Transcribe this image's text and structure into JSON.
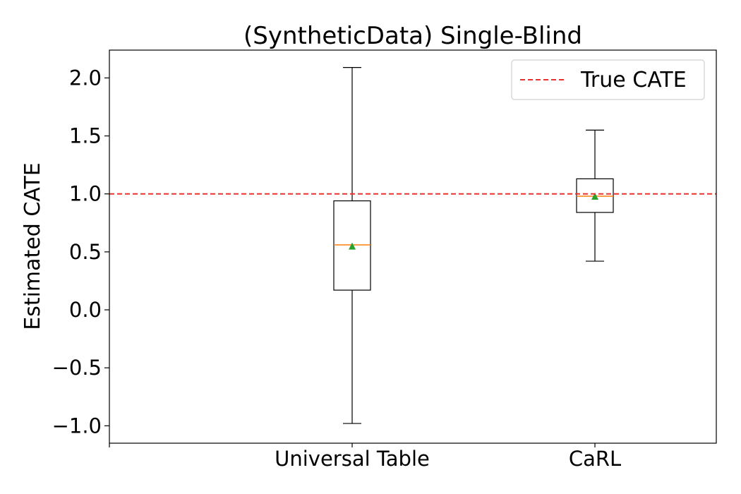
{
  "chart_data": {
    "type": "box",
    "title": "(SyntheticData) Single-Blind",
    "xlabel": "",
    "ylabel": "Estimated CATE",
    "ylim": [
      -1.15,
      2.24
    ],
    "yticks": [
      2.0,
      1.5,
      1.0,
      0.5,
      0.0,
      -0.5,
      -1.0
    ],
    "ytick_labels": [
      "2.0",
      "1.5",
      "1.0",
      "0.5",
      "0.0",
      "−0.5",
      "−1.0"
    ],
    "grid": false,
    "legend_position": "top-right",
    "reference_line": {
      "label": "True CATE",
      "value": 1.0,
      "style": "dashed",
      "color": "#e8322d"
    },
    "categories": [
      "Universal Table",
      "CaRL"
    ],
    "boxes": [
      {
        "label": "Universal Table",
        "whisker_low": -0.98,
        "q1": 0.17,
        "median": 0.56,
        "q3": 0.94,
        "whisker_high": 2.09,
        "mean": 0.55
      },
      {
        "label": "CaRL",
        "whisker_low": 0.42,
        "q1": 0.84,
        "median": 0.98,
        "q3": 1.13,
        "whisker_high": 1.55,
        "mean": 0.98
      }
    ],
    "colors": {
      "box": "#000000",
      "median": "#ff7f0e",
      "mean": "#2ca02c",
      "reference": "#e8322d"
    }
  }
}
